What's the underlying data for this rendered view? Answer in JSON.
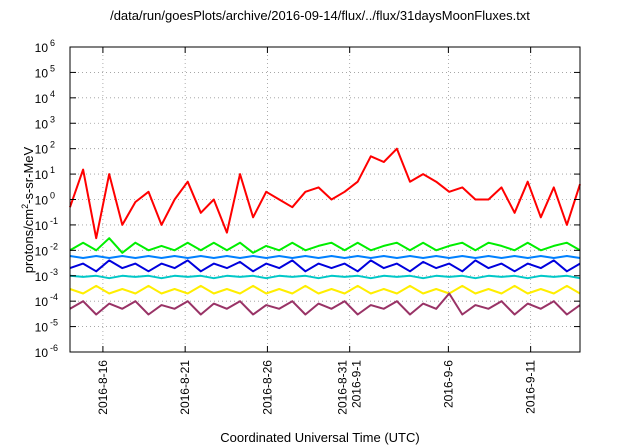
{
  "chart_data": {
    "type": "line",
    "title": "/data/run/goesPlots/archive/2016-09-14/flux/../flux/31daysMoonFluxes.txt",
    "xlabel": "Coordinated Universal Time (UTC)",
    "ylabel": {
      "pre": "protons/cm",
      "sup": "2",
      "post": "-s-sr-MeV"
    },
    "yscale": "log",
    "ylim_exp": [
      -6,
      6
    ],
    "ytick_exponents": [
      -6,
      -5,
      -4,
      -3,
      -2,
      -1,
      0,
      1,
      2,
      3,
      4,
      5,
      6
    ],
    "ytick_base": "10",
    "xlim": [
      "2016-08-14",
      "2016-09-14"
    ],
    "x_ticks": [
      {
        "date": "2016-08-16",
        "lines": [
          "2016-8-16"
        ]
      },
      {
        "date": "2016-08-21",
        "lines": [
          "2016-8-21"
        ]
      },
      {
        "date": "2016-08-26",
        "lines": [
          "2016-8-26"
        ]
      },
      {
        "date": "2016-08-31",
        "lines": [
          "2016-8-31",
          "2016-9-1"
        ]
      },
      {
        "date": "2016-09-06",
        "lines": [
          "2016-9-6"
        ]
      },
      {
        "date": "2016-09-11",
        "lines": [
          "2016-9-11"
        ]
      }
    ],
    "grid": true,
    "legend": false,
    "series": [
      {
        "color": "#ff0000",
        "values": [
          0.5,
          15,
          0.03,
          10,
          0.1,
          0.8,
          2,
          0.1,
          1,
          5,
          0.3,
          1,
          0.05,
          10,
          0.2,
          2,
          1,
          0.5,
          2,
          3,
          1,
          2,
          5,
          50,
          30,
          100,
          5,
          10,
          5,
          2,
          3,
          1,
          1,
          3,
          0.3,
          5,
          0.2,
          3,
          0.1,
          4
        ]
      },
      {
        "color": "#00ee00",
        "values": [
          0.01,
          0.02,
          0.01,
          0.03,
          0.008,
          0.02,
          0.01,
          0.015,
          0.01,
          0.02,
          0.01,
          0.02,
          0.01,
          0.02,
          0.008,
          0.015,
          0.01,
          0.02,
          0.01,
          0.015,
          0.02,
          0.01,
          0.02,
          0.01,
          0.015,
          0.02,
          0.01,
          0.02,
          0.01,
          0.015,
          0.02,
          0.01,
          0.02,
          0.015,
          0.01,
          0.02,
          0.01,
          0.015,
          0.02,
          0.01
        ]
      },
      {
        "color": "#0080ff",
        "values": [
          0.006,
          0.005,
          0.006,
          0.005,
          0.006,
          0.005,
          0.006,
          0.005,
          0.006,
          0.005,
          0.006,
          0.005,
          0.006,
          0.005,
          0.006,
          0.005,
          0.006,
          0.005,
          0.006,
          0.005,
          0.006,
          0.005,
          0.006,
          0.005,
          0.006,
          0.005,
          0.006,
          0.005,
          0.006,
          0.005,
          0.006,
          0.005,
          0.006,
          0.005,
          0.006,
          0.005,
          0.006,
          0.005,
          0.006,
          0.005
        ]
      },
      {
        "color": "#0000dd",
        "values": [
          0.002,
          0.003,
          0.0015,
          0.004,
          0.002,
          0.003,
          0.0015,
          0.003,
          0.002,
          0.004,
          0.0015,
          0.003,
          0.002,
          0.0035,
          0.0015,
          0.003,
          0.002,
          0.004,
          0.0015,
          0.003,
          0.002,
          0.003,
          0.0015,
          0.004,
          0.002,
          0.003,
          0.0015,
          0.0035,
          0.002,
          0.003,
          0.0015,
          0.004,
          0.002,
          0.003,
          0.0015,
          0.003,
          0.002,
          0.004,
          0.0015,
          0.003
        ]
      },
      {
        "color": "#00c8c8",
        "values": [
          0.001,
          0.0009,
          0.001,
          0.0008,
          0.001,
          0.0009,
          0.001,
          0.0008,
          0.001,
          0.0009,
          0.001,
          0.0008,
          0.001,
          0.0009,
          0.001,
          0.0008,
          0.001,
          0.0009,
          0.001,
          0.0008,
          0.001,
          0.0009,
          0.001,
          0.0008,
          0.001,
          0.0009,
          0.001,
          0.0008,
          0.001,
          0.0009,
          0.001,
          0.0008,
          0.001,
          0.0009,
          0.001,
          0.0008,
          0.001,
          0.0009,
          0.001,
          0.0008
        ]
      },
      {
        "color": "#ffee00",
        "values": [
          0.0003,
          0.0002,
          0.0004,
          0.0002,
          0.0003,
          0.0002,
          0.0004,
          0.0002,
          0.0003,
          0.0002,
          0.0004,
          0.0002,
          0.0003,
          0.0002,
          0.0004,
          0.0002,
          0.0003,
          0.0002,
          0.0004,
          0.0002,
          0.0003,
          0.0002,
          0.0004,
          0.0002,
          0.0003,
          0.0002,
          0.0004,
          0.0002,
          0.0003,
          0.0002,
          0.0004,
          0.0002,
          0.0003,
          0.0002,
          0.0004,
          0.0002,
          0.0003,
          0.0002,
          0.0004,
          0.0002
        ]
      },
      {
        "color": "#993366",
        "values": [
          5e-05,
          0.0001,
          3e-05,
          8e-05,
          5e-05,
          0.0001,
          3e-05,
          7e-05,
          5e-05,
          0.0001,
          3e-05,
          8e-05,
          5e-05,
          0.0001,
          3e-05,
          7e-05,
          5e-05,
          0.0001,
          3e-05,
          8e-05,
          5e-05,
          0.0001,
          3e-05,
          7e-05,
          5e-05,
          0.0001,
          3e-05,
          8e-05,
          5e-05,
          0.0002,
          3e-05,
          7e-05,
          5e-05,
          0.0001,
          3e-05,
          8e-05,
          5e-05,
          0.0001,
          3e-05,
          7e-05
        ]
      }
    ]
  }
}
